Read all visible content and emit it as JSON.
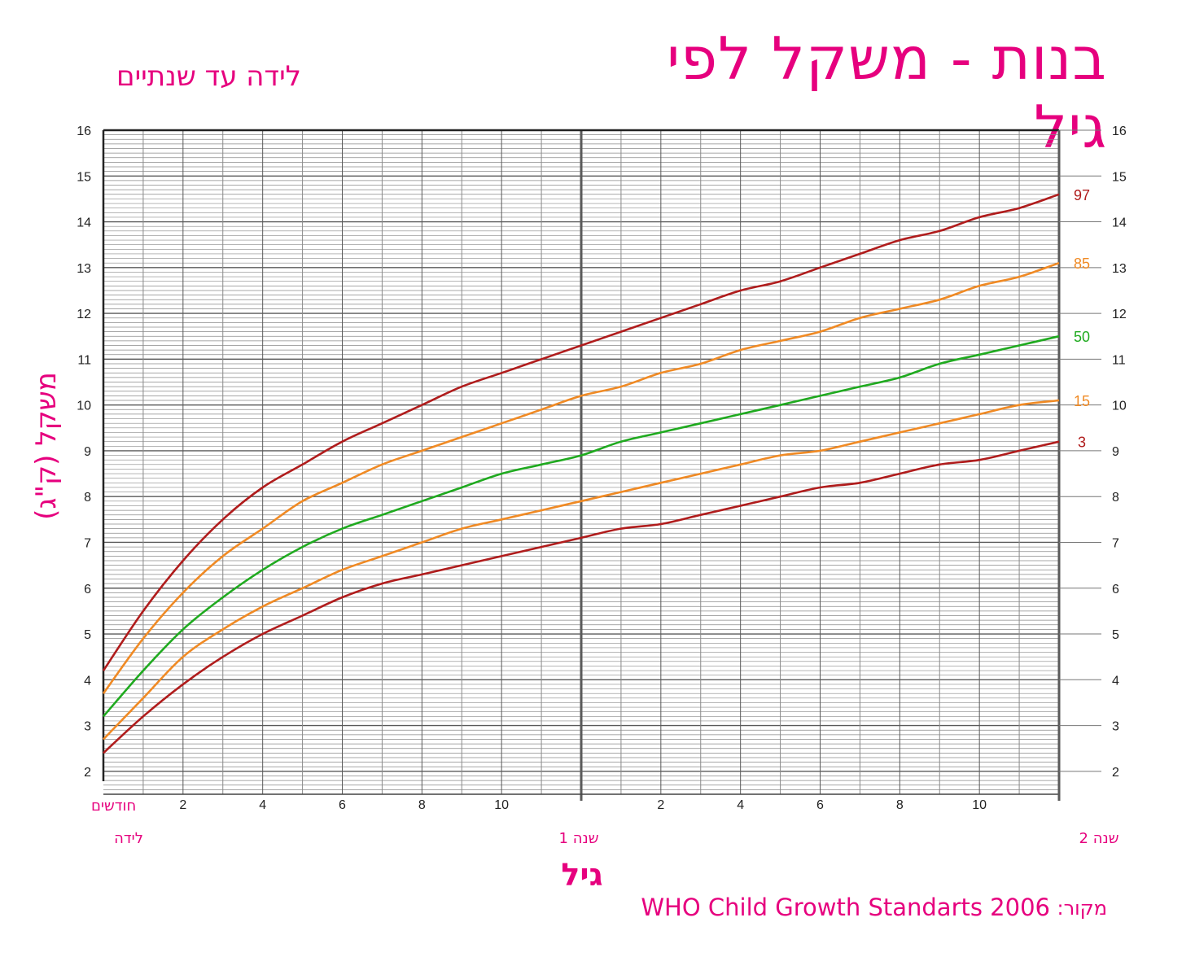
{
  "header": {
    "title": "בנות - משקל לפי גיל",
    "subtitle": "לידה עד שנתיים"
  },
  "source": {
    "prefix": "מקור:",
    "text": "WHO Child Growth Standarts 2006"
  },
  "colors": {
    "accent": "#e6007e",
    "p3_97": "#b01c1c",
    "p15_85": "#f08a24",
    "p50": "#1faa1f",
    "grid_minor": "#8a8a8a",
    "grid_major": "#5a5a5a"
  },
  "chart_data": {
    "type": "line",
    "title": "בנות - משקל לפי גיל",
    "subtitle": "לידה עד שנתיים",
    "xlabel": "גיל",
    "ylabel": "משקל (ק\"ג)",
    "x_unit_label": "חודשים",
    "xlim": [
      0,
      24
    ],
    "ylim": [
      1.5,
      16
    ],
    "y_ticks": [
      2,
      3,
      4,
      5,
      6,
      7,
      8,
      9,
      10,
      11,
      12,
      13,
      14,
      15,
      16
    ],
    "x_ticks": [
      {
        "month": 2,
        "label": "2"
      },
      {
        "month": 4,
        "label": "4"
      },
      {
        "month": 6,
        "label": "6"
      },
      {
        "month": 8,
        "label": "8"
      },
      {
        "month": 10,
        "label": "10"
      },
      {
        "month": 14,
        "label": "2"
      },
      {
        "month": 16,
        "label": "4"
      },
      {
        "month": 18,
        "label": "6"
      },
      {
        "month": 20,
        "label": "8"
      },
      {
        "month": 22,
        "label": "10"
      }
    ],
    "x_period_labels": [
      {
        "month": 0,
        "label": "לידה"
      },
      {
        "month": 12,
        "label": "שנה 1"
      },
      {
        "month": 24,
        "label": "שנה 2"
      }
    ],
    "grid": true,
    "x": [
      0,
      1,
      2,
      3,
      4,
      5,
      6,
      7,
      8,
      9,
      10,
      11,
      12,
      13,
      14,
      15,
      16,
      17,
      18,
      19,
      20,
      21,
      22,
      23,
      24
    ],
    "series": [
      {
        "name": "97",
        "color": "#b01c1c",
        "values": [
          4.2,
          5.5,
          6.6,
          7.5,
          8.2,
          8.7,
          9.2,
          9.6,
          10.0,
          10.4,
          10.7,
          11.0,
          11.3,
          11.6,
          11.9,
          12.2,
          12.5,
          12.7,
          13.0,
          13.3,
          13.6,
          13.8,
          14.1,
          14.3,
          14.6
        ]
      },
      {
        "name": "85",
        "color": "#f08a24",
        "values": [
          3.7,
          4.9,
          5.9,
          6.7,
          7.3,
          7.9,
          8.3,
          8.7,
          9.0,
          9.3,
          9.6,
          9.9,
          10.2,
          10.4,
          10.7,
          10.9,
          11.2,
          11.4,
          11.6,
          11.9,
          12.1,
          12.3,
          12.6,
          12.8,
          13.1
        ]
      },
      {
        "name": "50",
        "color": "#1faa1f",
        "values": [
          3.2,
          4.2,
          5.1,
          5.8,
          6.4,
          6.9,
          7.3,
          7.6,
          7.9,
          8.2,
          8.5,
          8.7,
          8.9,
          9.2,
          9.4,
          9.6,
          9.8,
          10.0,
          10.2,
          10.4,
          10.6,
          10.9,
          11.1,
          11.3,
          11.5
        ]
      },
      {
        "name": "15",
        "color": "#f08a24",
        "values": [
          2.7,
          3.6,
          4.5,
          5.1,
          5.6,
          6.0,
          6.4,
          6.7,
          7.0,
          7.3,
          7.5,
          7.7,
          7.9,
          8.1,
          8.3,
          8.5,
          8.7,
          8.9,
          9.0,
          9.2,
          9.4,
          9.6,
          9.8,
          10.0,
          10.1
        ]
      },
      {
        "name": "3",
        "color": "#b01c1c",
        "values": [
          2.4,
          3.2,
          3.9,
          4.5,
          5.0,
          5.4,
          5.8,
          6.1,
          6.3,
          6.5,
          6.7,
          6.9,
          7.1,
          7.3,
          7.4,
          7.6,
          7.8,
          8.0,
          8.2,
          8.3,
          8.5,
          8.7,
          8.8,
          9.0,
          9.2
        ]
      }
    ]
  }
}
